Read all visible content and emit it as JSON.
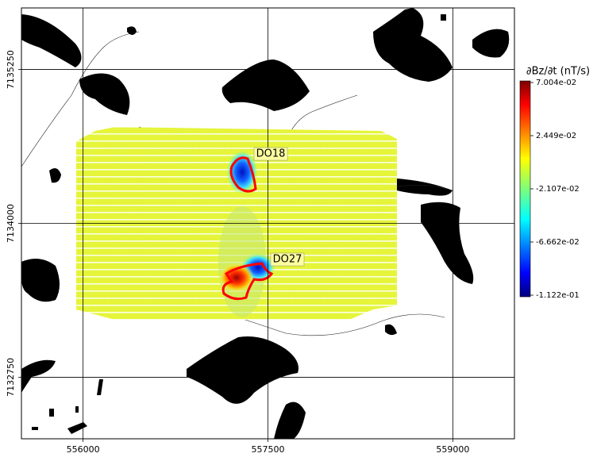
{
  "map": {
    "xlim": [
      555500,
      559500
    ],
    "ylim": [
      7132250,
      7135750
    ],
    "xticks": [
      556000,
      557500,
      559000
    ],
    "yticks": [
      7132750,
      7134000,
      7135250
    ],
    "grid": true,
    "annotations": [
      "DO18",
      "DO27"
    ],
    "colorbar": {
      "label": "∂Bz/∂t (nT/s)",
      "clim": [
        -0.1122,
        0.07004
      ],
      "ticks": [
        {
          "value": 0.07004,
          "label": "7.004e-02"
        },
        {
          "value": 0.02449,
          "label": "2.449e-02"
        },
        {
          "value": -0.02107,
          "label": "-2.107e-02"
        },
        {
          "value": -0.06662,
          "label": "-6.662e-02"
        },
        {
          "value": -0.1122,
          "label": "-1.122e-01"
        }
      ]
    }
  }
}
